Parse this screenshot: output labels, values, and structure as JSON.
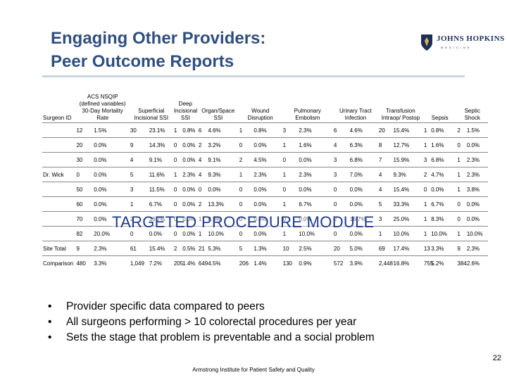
{
  "title": {
    "line1": "Engaging Other Providers:",
    "line2": "Peer Outcome Reports"
  },
  "logo": {
    "name": "JOHNS HOPKINS",
    "sub": "MEDICINE"
  },
  "table": {
    "columns": [
      "Surgeon ID",
      "ACS NSQIP (defined variables) 30-Day Mortality Rate",
      "Superficial Incisional SSI",
      "Deep Incisional SSI",
      "Organ/Space SSI",
      "Wound Disruption",
      "Pulmonary Embolism",
      "Urinary Tract Infection",
      "Transfusion Intraop/ Postop",
      "Sepsis",
      "Septic Shock"
    ],
    "rows": [
      [
        "",
        "12",
        "1.5%",
        "30",
        "23.1%",
        "1",
        "0.8%",
        "6",
        "4.6%",
        "1",
        "0.8%",
        "3",
        "2.3%",
        "6",
        "4.6%",
        "20",
        "15.4%",
        "1",
        "0.8%",
        "2",
        "1.5%"
      ],
      [
        "",
        "20",
        "0.0%",
        "9",
        "14.3%",
        "0",
        "0.0%",
        "2",
        "3.2%",
        "0",
        "0.0%",
        "1",
        "1.6%",
        "4",
        "6.3%",
        "8",
        "12.7%",
        "1",
        "1.6%",
        "0",
        "0.0%"
      ],
      [
        "",
        "30",
        "0.0%",
        "4",
        "9.1%",
        "0",
        "0.0%",
        "4",
        "9.1%",
        "2",
        "4.5%",
        "0",
        "0.0%",
        "3",
        "6.8%",
        "7",
        "15.9%",
        "3",
        "6.8%",
        "1",
        "2.3%"
      ],
      [
        "Dr. Wick",
        "0",
        "0.0%",
        "5",
        "11.6%",
        "1",
        "2.3%",
        "4",
        "9.3%",
        "1",
        "2.3%",
        "1",
        "2.3%",
        "3",
        "7.0%",
        "4",
        "9.3%",
        "2",
        "4.7%",
        "1",
        "2.3%"
      ],
      [
        "",
        "50",
        "0.0%",
        "3",
        "11.5%",
        "0",
        "0.0%",
        "0",
        "0.0%",
        "0",
        "0.0%",
        "0",
        "0.0%",
        "0",
        "0.0%",
        "4",
        "15.4%",
        "0",
        "0.0%",
        "1",
        "3.8%"
      ],
      [
        "",
        "60",
        "0.0%",
        "1",
        "6.7%",
        "0",
        "0.0%",
        "2",
        "13.3%",
        "0",
        "0.0%",
        "1",
        "6.7%",
        "0",
        "0.0%",
        "5",
        "33.3%",
        "1",
        "6.7%",
        "0",
        "0.0%"
      ],
      [
        "",
        "70",
        "0.0%",
        "2",
        "16.7%",
        "0",
        "0.0%",
        "1",
        "8.3%",
        "0",
        "0.0%",
        "0",
        "0.0%",
        "2",
        "16.7%",
        "3",
        "25.0%",
        "1",
        "8.3%",
        "0",
        "0.0%"
      ],
      [
        "",
        "82",
        "20.0%",
        "0",
        "0.0%",
        "0",
        "0.0%",
        "1",
        "10.0%",
        "0",
        "0.0%",
        "1",
        "10.0%",
        "0",
        "0.0%",
        "1",
        "10.0%",
        "1",
        "10.0%",
        "1",
        "10.0%"
      ],
      [
        "Site Total",
        "9",
        "2.3%",
        "61",
        "15.4%",
        "2",
        "0.5%",
        "21",
        "5.3%",
        "5",
        "1.3%",
        "10",
        "2.5%",
        "20",
        "5.0%",
        "69",
        "17.4%",
        "13",
        "3.3%",
        "9",
        "2.3%"
      ],
      [
        "Comparison",
        "480",
        "3.3%",
        "1,049",
        "7.2%",
        "205",
        "1.4%",
        "649",
        "4.5%",
        "206",
        "1.4%",
        "130",
        "0.9%",
        "572",
        "3.9%",
        "2,448",
        "16.8%",
        "755",
        "5.2%",
        "384",
        "2.6%"
      ]
    ]
  },
  "watermark": "TARGETED PROCEDURE MODULE",
  "bullets": [
    "Provider specific data compared to peers",
    "All surgeons performing > 10 colorectal procedures per year",
    "Sets the stage that problem is preventable and a social problem"
  ],
  "page_number": "22",
  "footer": "Armstrong Institute for Patient Safety and Quality"
}
